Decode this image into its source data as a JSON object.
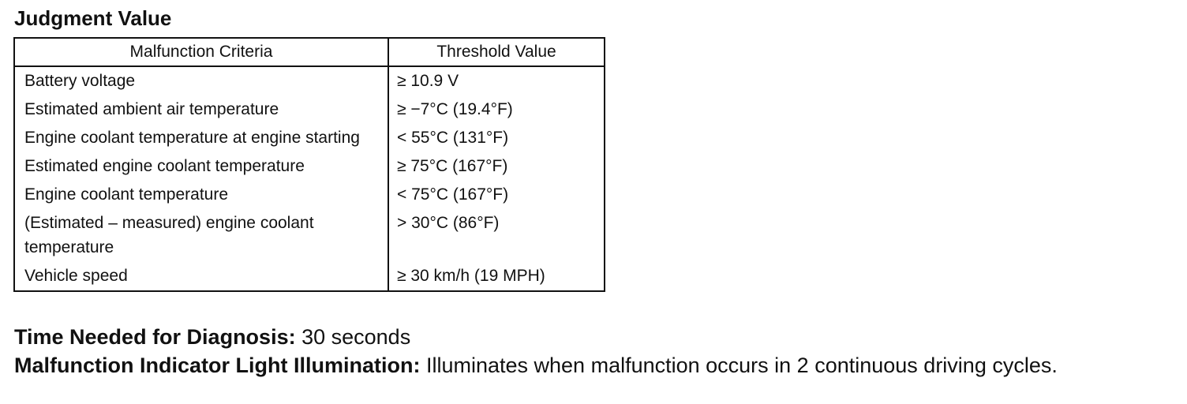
{
  "header": {
    "title": "Judgment Value"
  },
  "table": {
    "columns": [
      "Malfunction Criteria",
      "Threshold Value"
    ],
    "rows": [
      [
        "Battery voltage",
        "≥ 10.9 V"
      ],
      [
        "Estimated ambient air temperature",
        "≥ −7°C (19.4°F)"
      ],
      [
        "Engine coolant temperature at engine starting",
        "< 55°C (131°F)"
      ],
      [
        "Estimated engine coolant temperature",
        "≥ 75°C (167°F)"
      ],
      [
        "Engine coolant temperature",
        "< 75°C (167°F)"
      ],
      [
        "(Estimated – measured) engine coolant temperature",
        "> 30°C (86°F)"
      ],
      [
        "Vehicle speed",
        "≥ 30 km/h (19 MPH)"
      ]
    ]
  },
  "diagnosis_time": {
    "label": "Time Needed for Diagnosis:",
    "text": "30 seconds"
  },
  "mil": {
    "label": "Malfunction Indicator Light Illumination:",
    "text": "Illuminates when malfunction occurs in 2 continuous driving cy­cles."
  }
}
